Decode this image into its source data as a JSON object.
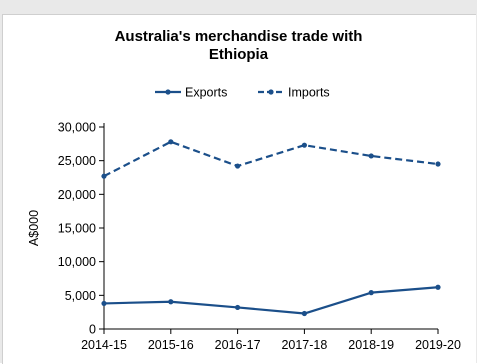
{
  "colors": {
    "series": "#1b4f8a",
    "axis": "#000000",
    "background": "#ffffff",
    "frame": "#e9e9e9"
  },
  "chart_data": {
    "type": "line",
    "title_lines": [
      "Australia's merchandise trade with",
      "Ethiopia"
    ],
    "ylabel": "A$000",
    "xlabel": "",
    "categories": [
      "2014-15",
      "2015-16",
      "2016-17",
      "2017-18",
      "2018-19",
      "2019-20"
    ],
    "ylim": [
      0,
      30000
    ],
    "yticks": [
      0,
      5000,
      10000,
      15000,
      20000,
      25000,
      30000
    ],
    "ytick_labels": [
      "0",
      "5,000",
      "10,000",
      "15,000",
      "20,000",
      "25,000",
      "30,000"
    ],
    "grid": false,
    "legend_position": "top-center",
    "series": [
      {
        "name": "Exports",
        "style": "solid",
        "values": [
          3800,
          4050,
          3200,
          2300,
          5400,
          6200
        ]
      },
      {
        "name": "Imports",
        "style": "dashed",
        "values": [
          22700,
          27800,
          24200,
          27300,
          25700,
          24500
        ]
      }
    ]
  }
}
